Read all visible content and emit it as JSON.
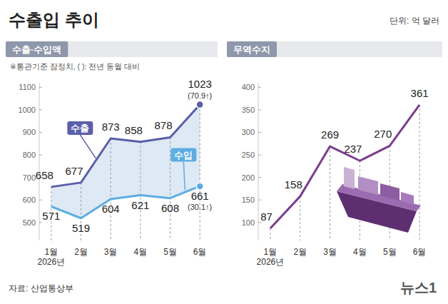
{
  "header": {
    "title": "수출입 추이",
    "unit": "단위: 억 달러"
  },
  "footer": {
    "source": "자료: 산업통상부",
    "logo": "뉴스1"
  },
  "chart_data": [
    {
      "type": "line",
      "title": "수출·수입액",
      "subtitle": "※통관기준 잠정치, ( ): 전년 동월 대비",
      "categories": [
        "1월\n2026년",
        "2월",
        "3월",
        "4월",
        "5월",
        "6월"
      ],
      "series": [
        {
          "name": "수출",
          "color": "#5b5ea8",
          "values": [
            658,
            677,
            873,
            858,
            878,
            1023
          ]
        },
        {
          "name": "수입",
          "color": "#5dade2",
          "values": [
            571,
            519,
            604,
            621,
            608,
            661
          ]
        }
      ],
      "annotations": [
        "(70.9↑)",
        "(30.1↑)"
      ],
      "ylim": [
        420,
        1120
      ],
      "yticks": [
        500,
        600,
        700,
        800,
        900,
        1000,
        1100
      ],
      "grid": false,
      "data_labels": true
    },
    {
      "type": "line",
      "title": "무역수지",
      "categories": [
        "1월\n2026년",
        "2월",
        "3월",
        "4월",
        "5월",
        "6월"
      ],
      "values": [
        87,
        158,
        269,
        237,
        270,
        361
      ],
      "color": "#7a3d8e",
      "ylim": [
        60,
        410
      ],
      "yticks": [
        100,
        150,
        200,
        250,
        300,
        350,
        400
      ],
      "grid": false,
      "data_labels": true
    }
  ]
}
